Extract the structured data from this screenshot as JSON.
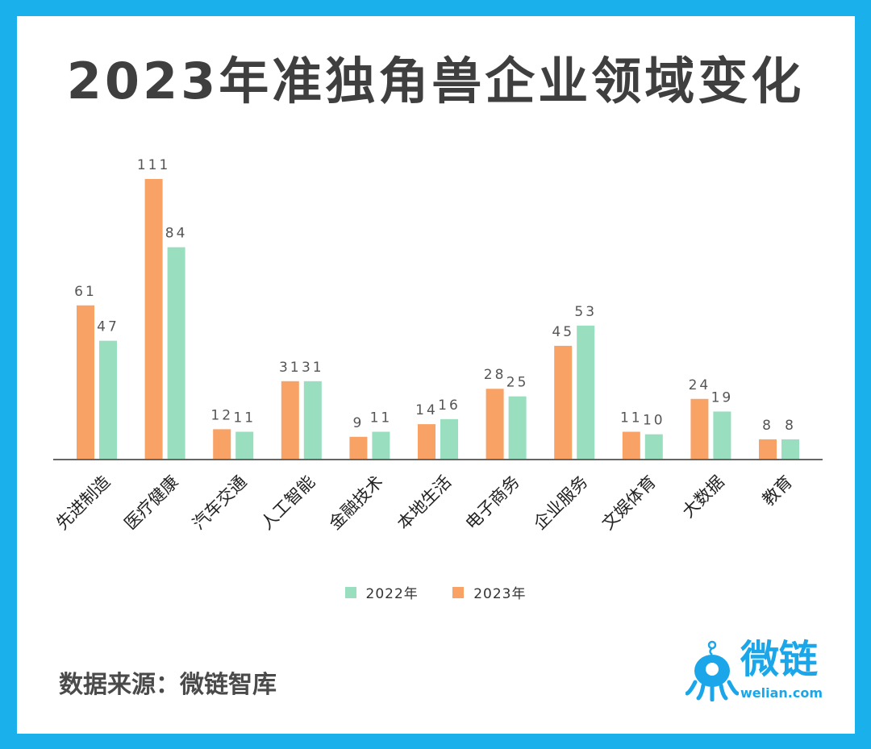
{
  "title": "2023年准独角兽企业领域变化",
  "source": "数据来源：微链智库",
  "logo": {
    "name": "微链",
    "sub": "welian.com"
  },
  "colors": {
    "2023": "#f9a265",
    "2022": "#9adec0",
    "axis": "#666666",
    "label": "#555555",
    "background": "#1ab0ec",
    "logo": "#1aa6e8"
  },
  "chart_data": {
    "type": "bar",
    "title": "2023年准独角兽企业领域变化",
    "categories": [
      "先进制造",
      "医疗健康",
      "汽车交通",
      "人工智能",
      "金融技术",
      "本地生活",
      "电子商务",
      "企业服务",
      "文娱体育",
      "大数据",
      "教育"
    ],
    "series": [
      {
        "name": "2023年",
        "values": [
          61,
          111,
          12,
          31,
          9,
          14,
          28,
          45,
          11,
          24,
          8
        ]
      },
      {
        "name": "2022年",
        "values": [
          47,
          84,
          11,
          31,
          11,
          16,
          25,
          53,
          10,
          19,
          8
        ]
      }
    ],
    "legend": [
      "2022年",
      "2023年"
    ],
    "legend_position": "bottom",
    "ylim": [
      0,
      115
    ],
    "grid": false
  }
}
